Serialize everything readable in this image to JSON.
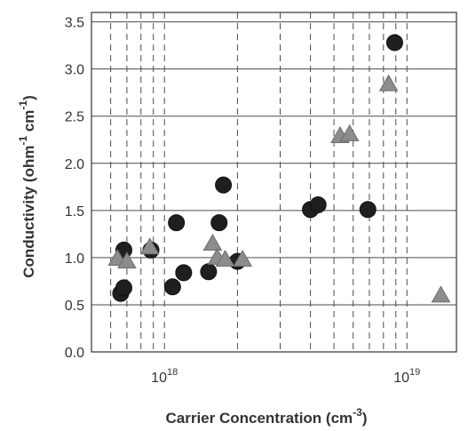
{
  "chart_data": {
    "type": "scatter",
    "xlabel": "Carrier Concentration (cm",
    "xlabel_sup": "-3",
    "xlabel_end": ")",
    "ylabel_parts": [
      "Conductivity (ohm",
      "-1",
      " cm",
      "-1",
      ")"
    ],
    "x_scale": "log",
    "xlim": [
      5e+17,
      1.6e+19
    ],
    "ylim": [
      0.0,
      3.6
    ],
    "x_ticks": [
      {
        "value": 1e+18,
        "base": "10",
        "exp": "18"
      },
      {
        "value": 1e+19,
        "base": "10",
        "exp": "19"
      }
    ],
    "y_ticks": [
      {
        "value": 0.0,
        "label": "0.0"
      },
      {
        "value": 0.5,
        "label": "0.5"
      },
      {
        "value": 1.0,
        "label": "1.0"
      },
      {
        "value": 1.5,
        "label": "1.5"
      },
      {
        "value": 2.0,
        "label": "2.0"
      },
      {
        "value": 2.5,
        "label": "2.5"
      },
      {
        "value": 3.0,
        "label": "3.0"
      },
      {
        "value": 3.5,
        "label": "3.5"
      }
    ],
    "grid": {
      "x_minor_dashed": true,
      "y_major_solid": true
    },
    "series": [
      {
        "marker": "circle",
        "color": "#1f1f1f",
        "points": [
          {
            "x": 6.6e+17,
            "y": 0.62
          },
          {
            "x": 6.8e+17,
            "y": 0.68
          },
          {
            "x": 6.8e+17,
            "y": 1.08
          },
          {
            "x": 8.8e+17,
            "y": 1.08
          },
          {
            "x": 1.08e+18,
            "y": 0.69
          },
          {
            "x": 1.12e+18,
            "y": 1.37
          },
          {
            "x": 1.2e+18,
            "y": 0.84
          },
          {
            "x": 1.52e+18,
            "y": 0.85
          },
          {
            "x": 1.68e+18,
            "y": 1.37
          },
          {
            "x": 1.75e+18,
            "y": 1.77
          },
          {
            "x": 2e+18,
            "y": 0.96
          },
          {
            "x": 4e+18,
            "y": 1.51
          },
          {
            "x": 4.3e+18,
            "y": 1.56
          },
          {
            "x": 6.9e+18,
            "y": 1.51
          },
          {
            "x": 8.9e+18,
            "y": 3.28
          }
        ]
      },
      {
        "marker": "triangle",
        "color": "#8c8c8c",
        "points": [
          {
            "x": 6.4e+17,
            "y": 0.99
          },
          {
            "x": 7e+17,
            "y": 0.96
          },
          {
            "x": 8.7e+17,
            "y": 1.11
          },
          {
            "x": 1.58e+18,
            "y": 1.15
          },
          {
            "x": 1.65e+18,
            "y": 1.0
          },
          {
            "x": 1.78e+18,
            "y": 0.98
          },
          {
            "x": 2.1e+18,
            "y": 0.98
          },
          {
            "x": 5.3e+18,
            "y": 2.29
          },
          {
            "x": 5.8e+18,
            "y": 2.31
          },
          {
            "x": 8.4e+18,
            "y": 2.84
          },
          {
            "x": 1.38e+19,
            "y": 0.6
          }
        ]
      }
    ]
  }
}
